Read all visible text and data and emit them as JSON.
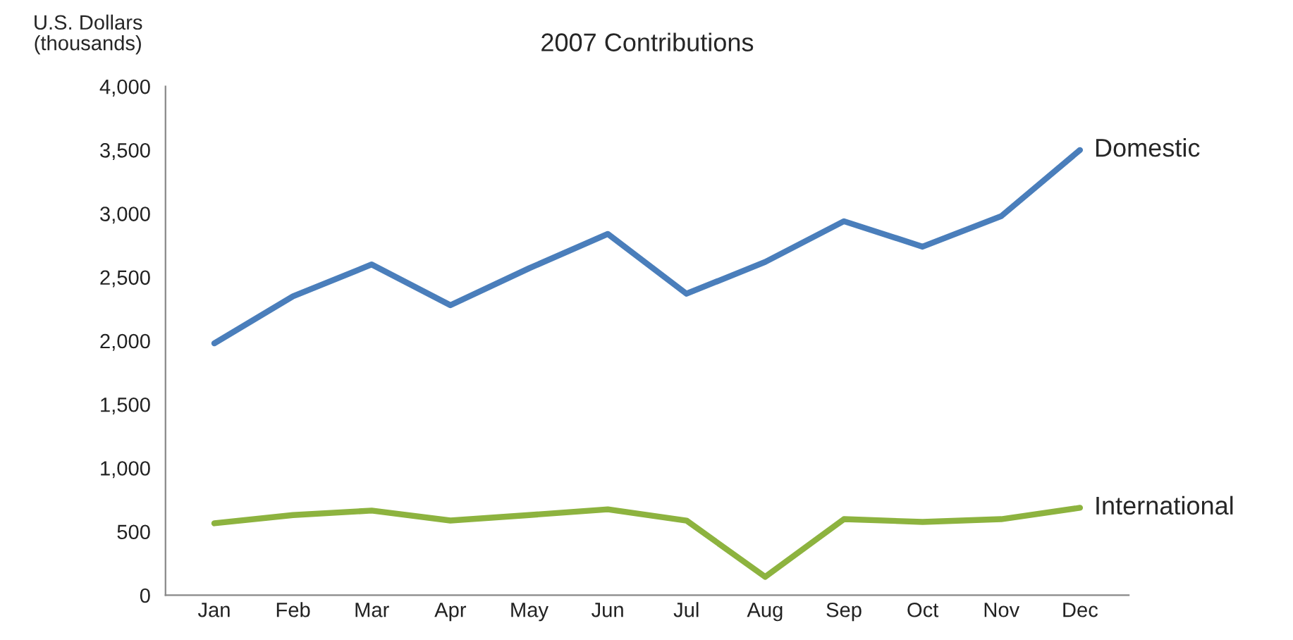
{
  "chart_data": {
    "type": "line",
    "title": "2007 Contributions",
    "ylabel": "U.S. Dollars\n(thousands)",
    "categories": [
      "Jan",
      "Feb",
      "Mar",
      "Apr",
      "May",
      "Jun",
      "Jul",
      "Aug",
      "Sep",
      "Oct",
      "Nov",
      "Dec"
    ],
    "series": [
      {
        "name": "Domestic",
        "color": "#4a7ebb",
        "values": [
          1980,
          2350,
          2600,
          2280,
          2570,
          2840,
          2370,
          2620,
          2940,
          2740,
          2980,
          3500
        ]
      },
      {
        "name": "International",
        "color": "#8db33f",
        "values": [
          565,
          630,
          665,
          587,
          630,
          675,
          587,
          144,
          598,
          576,
          598,
          687
        ]
      }
    ],
    "ylim": [
      0,
      4000
    ],
    "yticks": [
      0,
      500,
      {
        "value": 1000,
        "label": "1,000"
      },
      {
        "value": 1500,
        "label": "1,500"
      },
      {
        "value": 2000,
        "label": "2,000"
      },
      {
        "value": 2500,
        "label": "2,500"
      },
      {
        "value": 3000,
        "label": "3,000"
      },
      {
        "value": 3500,
        "label": "3,500"
      },
      {
        "value": 4000,
        "label": "4,000"
      }
    ],
    "grid": false,
    "legend": false,
    "marker": "none",
    "line_style": "solid"
  }
}
